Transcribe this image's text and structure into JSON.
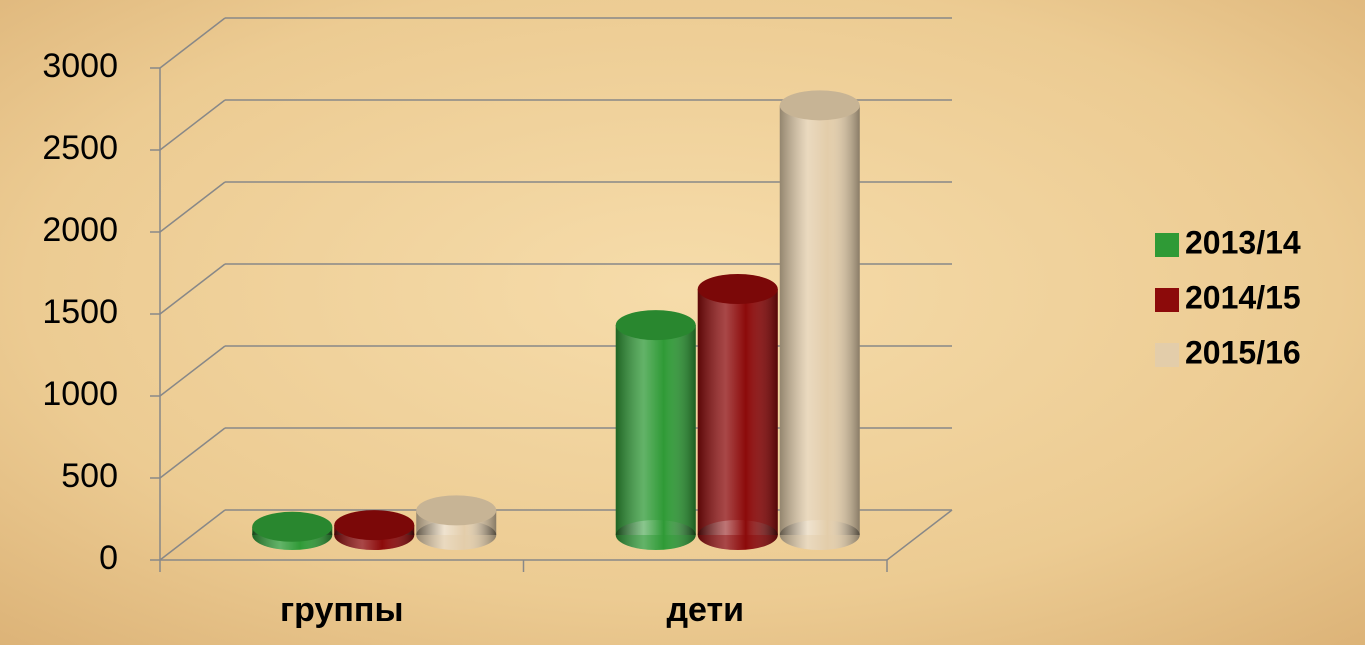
{
  "chart_data": {
    "type": "bar3d",
    "categories": [
      "группы",
      "дети"
    ],
    "series": [
      {
        "name": "2013/14",
        "color": "#2f9a36",
        "values": [
          50,
          1280
        ]
      },
      {
        "name": "2014/15",
        "color": "#8c0a0a",
        "values": [
          60,
          1500
        ]
      },
      {
        "name": "2015/16",
        "color": "#e3cdaa",
        "values": [
          150,
          2620
        ]
      }
    ],
    "ylim": [
      0,
      3000
    ],
    "yticks": [
      0,
      500,
      1000,
      1500,
      2000,
      2500,
      3000
    ],
    "grid": true,
    "legend": "right"
  }
}
